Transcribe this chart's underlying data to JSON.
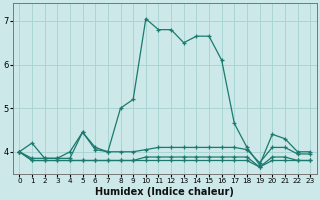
{
  "xlabel": "Humidex (Indice chaleur)",
  "ylabel": "",
  "bg_color": "#cce8e8",
  "grid_color": "#aad4d4",
  "line_color": "#1a7a6e",
  "xlim": [
    -0.5,
    23.5
  ],
  "ylim": [
    3.5,
    7.4
  ],
  "yticks": [
    4,
    5,
    6,
    7
  ],
  "xticks": [
    0,
    1,
    2,
    3,
    4,
    5,
    6,
    7,
    8,
    9,
    10,
    11,
    12,
    13,
    14,
    15,
    16,
    17,
    18,
    19,
    20,
    21,
    22,
    23
  ],
  "series": [
    [
      4.0,
      4.2,
      3.85,
      3.85,
      4.0,
      4.45,
      4.05,
      4.0,
      5.0,
      5.2,
      7.05,
      6.8,
      6.8,
      6.5,
      6.65,
      6.65,
      6.1,
      4.65,
      4.1,
      3.7,
      4.4,
      4.3,
      4.0,
      4.0
    ],
    [
      4.0,
      3.85,
      3.85,
      3.85,
      3.85,
      4.45,
      4.1,
      4.0,
      4.0,
      4.0,
      4.05,
      4.1,
      4.1,
      4.1,
      4.1,
      4.1,
      4.1,
      4.1,
      4.05,
      3.75,
      4.1,
      4.1,
      3.95,
      3.95
    ],
    [
      4.0,
      3.8,
      3.8,
      3.8,
      3.8,
      3.8,
      3.8,
      3.8,
      3.8,
      3.8,
      3.8,
      3.8,
      3.8,
      3.8,
      3.8,
      3.8,
      3.8,
      3.8,
      3.8,
      3.65,
      3.8,
      3.8,
      3.8,
      3.8
    ],
    [
      4.0,
      3.8,
      3.8,
      3.8,
      3.8,
      3.8,
      3.8,
      3.8,
      3.8,
      3.8,
      3.88,
      3.88,
      3.88,
      3.88,
      3.88,
      3.88,
      3.88,
      3.88,
      3.88,
      3.65,
      3.88,
      3.88,
      3.8,
      3.8
    ]
  ]
}
